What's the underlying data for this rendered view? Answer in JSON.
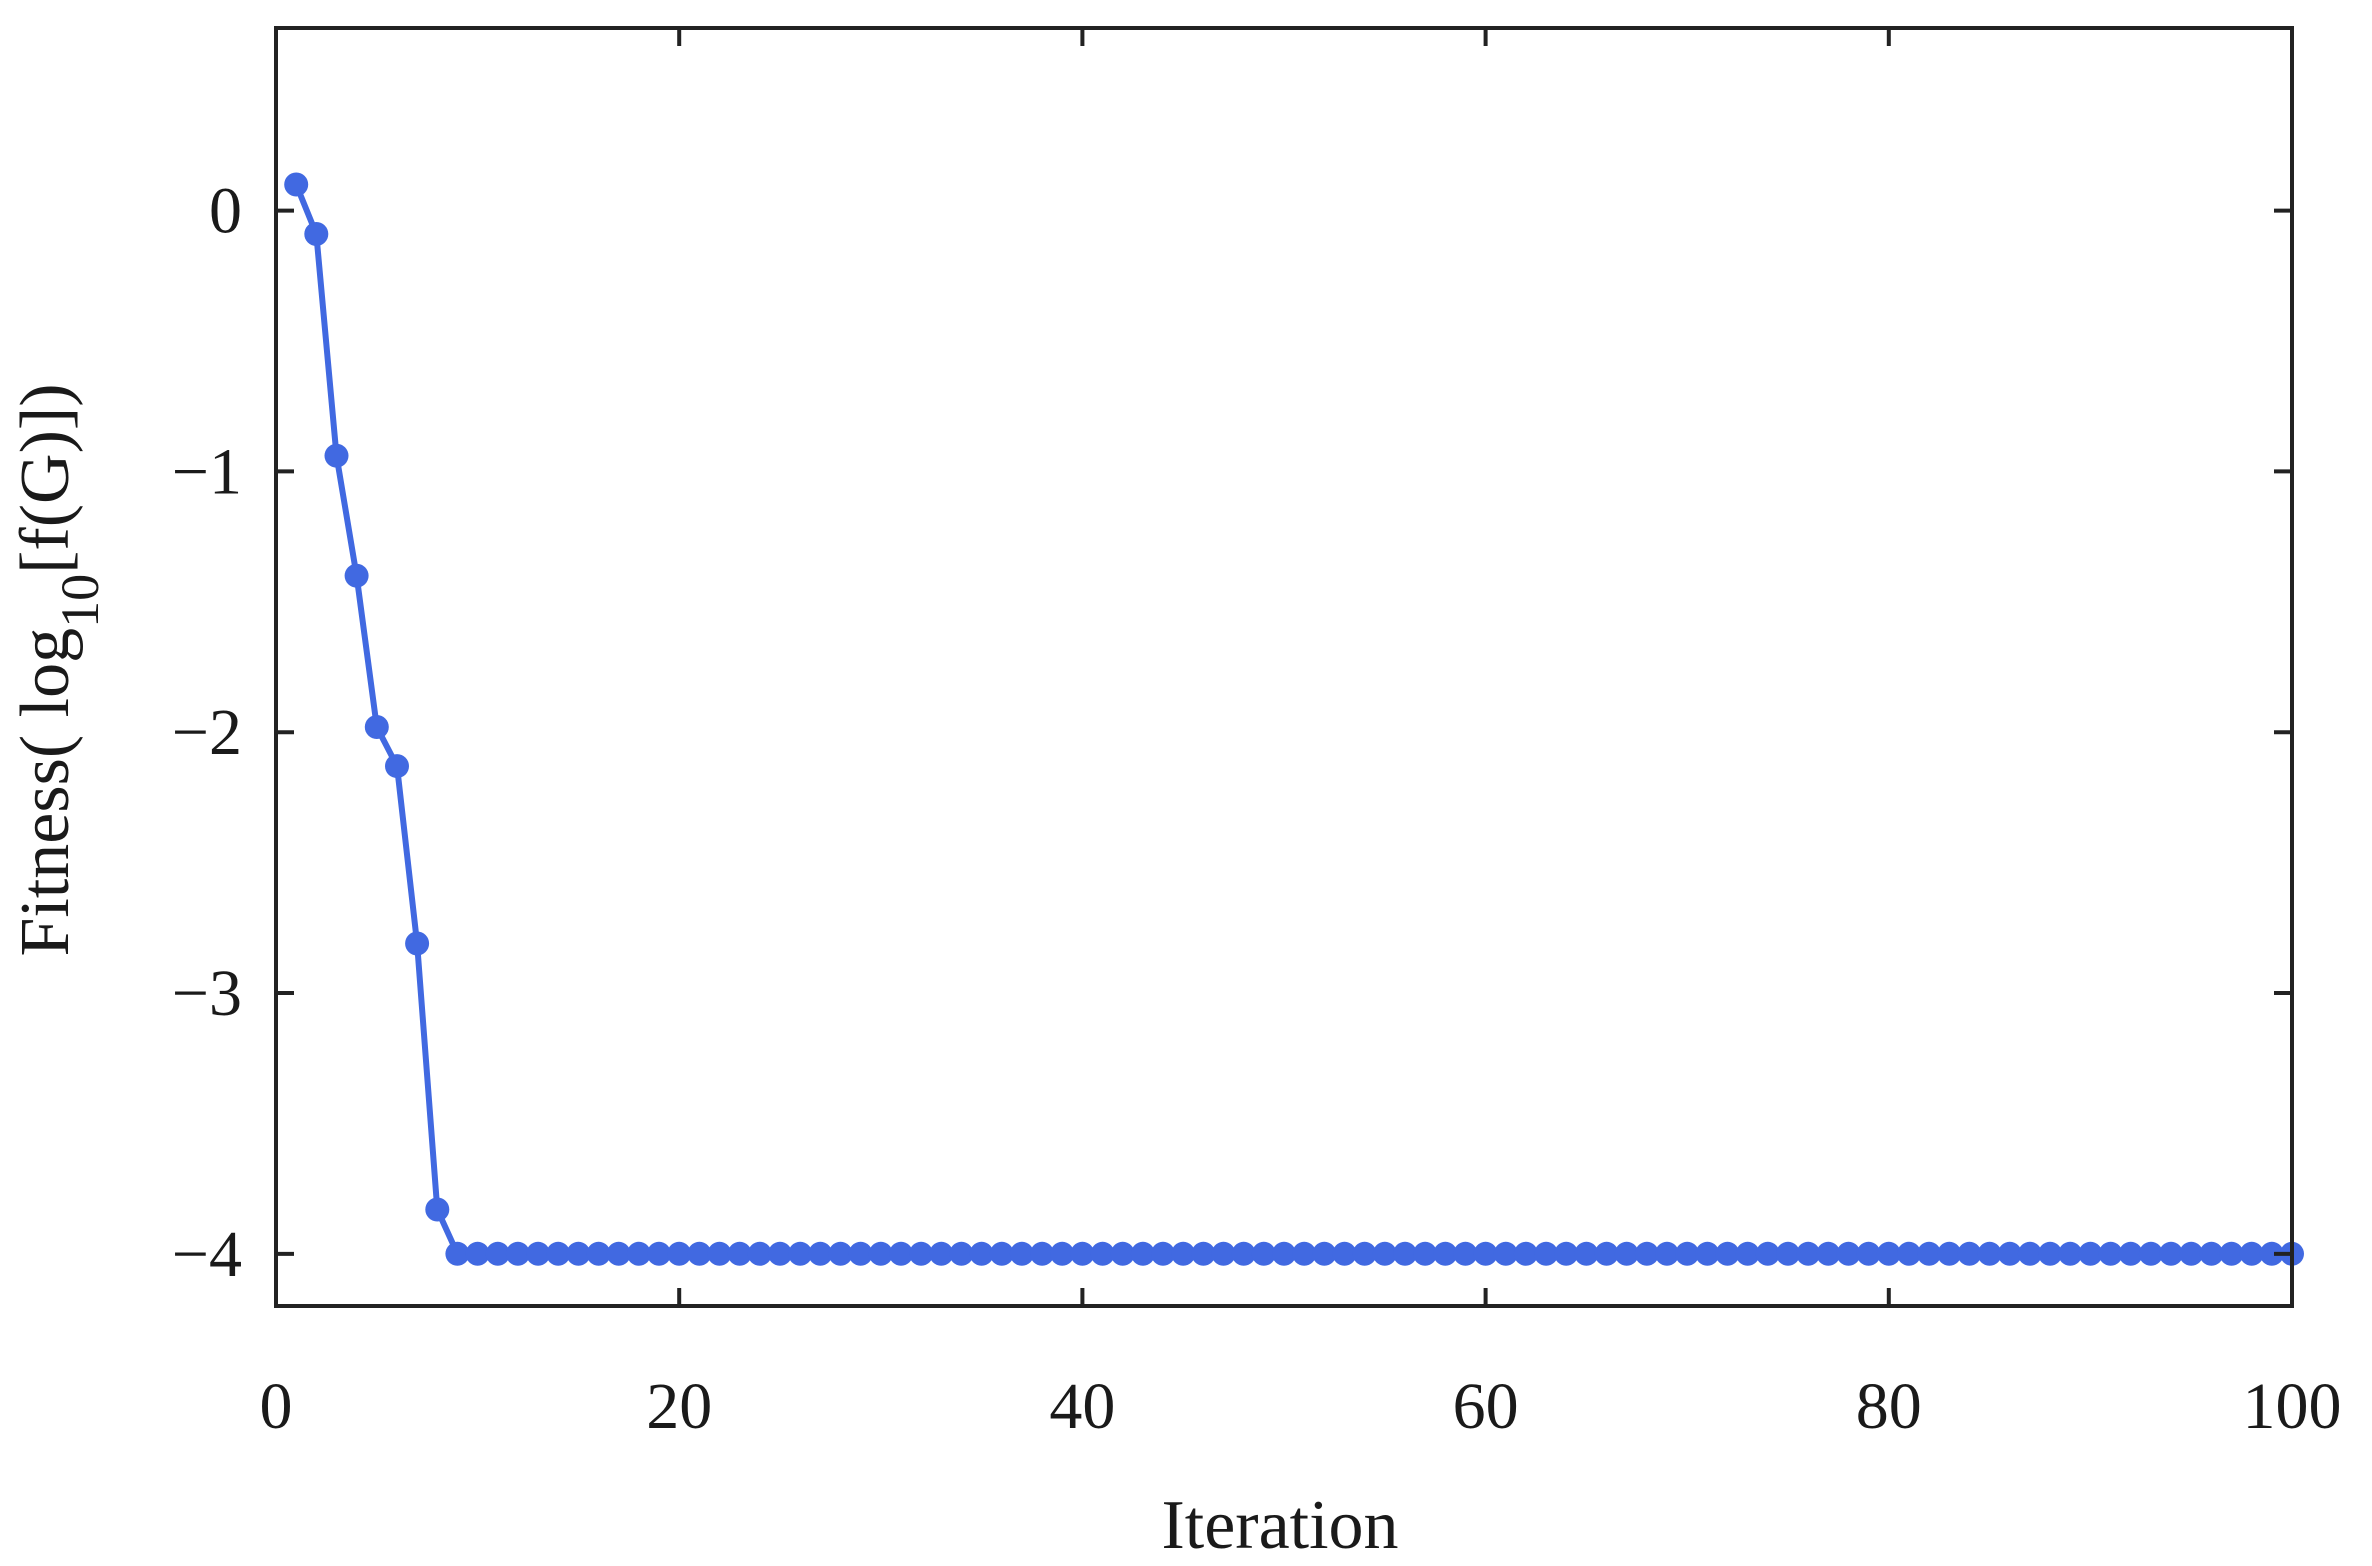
{
  "chart_data": {
    "type": "line",
    "xlabel": "Iteration",
    "ylabel_parts": {
      "prefix": "Fitness( log",
      "subscript": "10",
      "suffix": "[f(G)])"
    },
    "xlim": [
      0,
      100
    ],
    "ylim": [
      -4.2,
      0.7
    ],
    "xticks": [
      0,
      20,
      40,
      60,
      80,
      100
    ],
    "xtick_labels": [
      "0",
      "20",
      "40",
      "60",
      "80",
      "100"
    ],
    "yticks": [
      0,
      -1,
      -2,
      -3,
      -4
    ],
    "ytick_labels": [
      "0",
      "−1",
      "−2",
      "−3",
      "−4"
    ],
    "grid": false,
    "line_color": "#4169e1",
    "axis_color": "#222222",
    "series": [
      {
        "x": [
          1,
          2,
          3,
          4,
          5,
          6,
          7,
          8,
          9,
          10,
          11,
          12,
          13,
          14,
          15,
          16,
          17,
          18,
          19,
          20,
          21,
          22,
          23,
          24,
          25,
          26,
          27,
          28,
          29,
          30,
          31,
          32,
          33,
          34,
          35,
          36,
          37,
          38,
          39,
          40,
          41,
          42,
          43,
          44,
          45,
          46,
          47,
          48,
          49,
          50,
          51,
          52,
          53,
          54,
          55,
          56,
          57,
          58,
          59,
          60,
          61,
          62,
          63,
          64,
          65,
          66,
          67,
          68,
          69,
          70,
          71,
          72,
          73,
          74,
          75,
          76,
          77,
          78,
          79,
          80,
          81,
          82,
          83,
          84,
          85,
          86,
          87,
          88,
          89,
          90,
          91,
          92,
          93,
          94,
          95,
          96,
          97,
          98,
          99,
          100
        ],
        "values": [
          0.1,
          -0.09,
          -0.94,
          -1.4,
          -1.98,
          -2.13,
          -2.81,
          -3.83,
          -4,
          -4,
          -4,
          -4,
          -4,
          -4,
          -4,
          -4,
          -4,
          -4,
          -4,
          -4,
          -4,
          -4,
          -4,
          -4,
          -4,
          -4,
          -4,
          -4,
          -4,
          -4,
          -4,
          -4,
          -4,
          -4,
          -4,
          -4,
          -4,
          -4,
          -4,
          -4,
          -4,
          -4,
          -4,
          -4,
          -4,
          -4,
          -4,
          -4,
          -4,
          -4,
          -4,
          -4,
          -4,
          -4,
          -4,
          -4,
          -4,
          -4,
          -4,
          -4,
          -4,
          -4,
          -4,
          -4,
          -4,
          -4,
          -4,
          -4,
          -4,
          -4,
          -4,
          -4,
          -4,
          -4,
          -4,
          -4,
          -4,
          -4,
          -4,
          -4,
          -4,
          -4,
          -4,
          -4,
          -4,
          -4,
          -4,
          -4,
          -4,
          -4,
          -4,
          -4,
          -4,
          -4,
          -4,
          -4,
          -4,
          -4,
          -4,
          -4
        ]
      }
    ]
  }
}
